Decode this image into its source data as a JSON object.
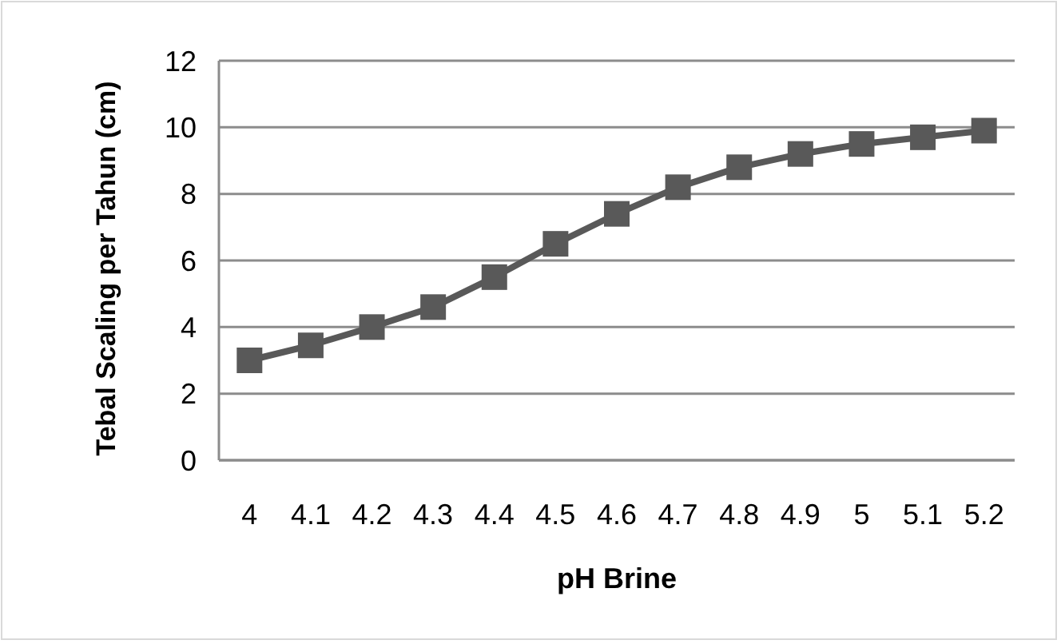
{
  "chart_data": {
    "type": "line",
    "xlabel": "pH Brine",
    "ylabel": "Tebal Scaling per Tahun (cm)",
    "categories": [
      "4",
      "4.1",
      "4.2",
      "4.3",
      "4.4",
      "4.5",
      "4.6",
      "4.7",
      "4.8",
      "4.9",
      "5",
      "5.1",
      "5.2"
    ],
    "series": [
      {
        "color": "#595959",
        "values": [
          3.0,
          3.45,
          4.0,
          4.6,
          5.5,
          6.5,
          7.4,
          8.2,
          8.8,
          9.2,
          9.5,
          9.7,
          9.9
        ]
      }
    ],
    "ylim": [
      0,
      12
    ],
    "yticks": [
      0,
      2,
      4,
      6,
      8,
      10,
      12
    ],
    "grid": "y",
    "marker": "square",
    "line_style": "solid"
  }
}
